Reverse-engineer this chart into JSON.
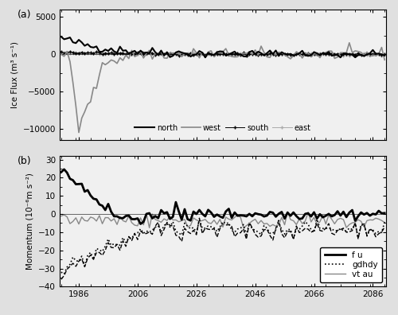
{
  "title_a": "(a)",
  "title_b": "(b)",
  "ylabel_a": "Ice Flux (m³ s⁻¹)",
  "ylabel_b": "Momentum (10⁻⁶m s⁻²)",
  "ylim_a": [
    -11500,
    6000
  ],
  "ylim_b": [
    -40,
    32
  ],
  "yticks_a": [
    -10000,
    -5000,
    0,
    5000
  ],
  "yticks_b": [
    -40,
    -30,
    -20,
    -10,
    0,
    10,
    20,
    30
  ],
  "xticks": [
    1986,
    2006,
    2026,
    2046,
    2066,
    2086
  ],
  "year_start": 1980,
  "year_end": 2090,
  "background_color": "#e0e0e0",
  "plot_background": "#f0f0f0"
}
